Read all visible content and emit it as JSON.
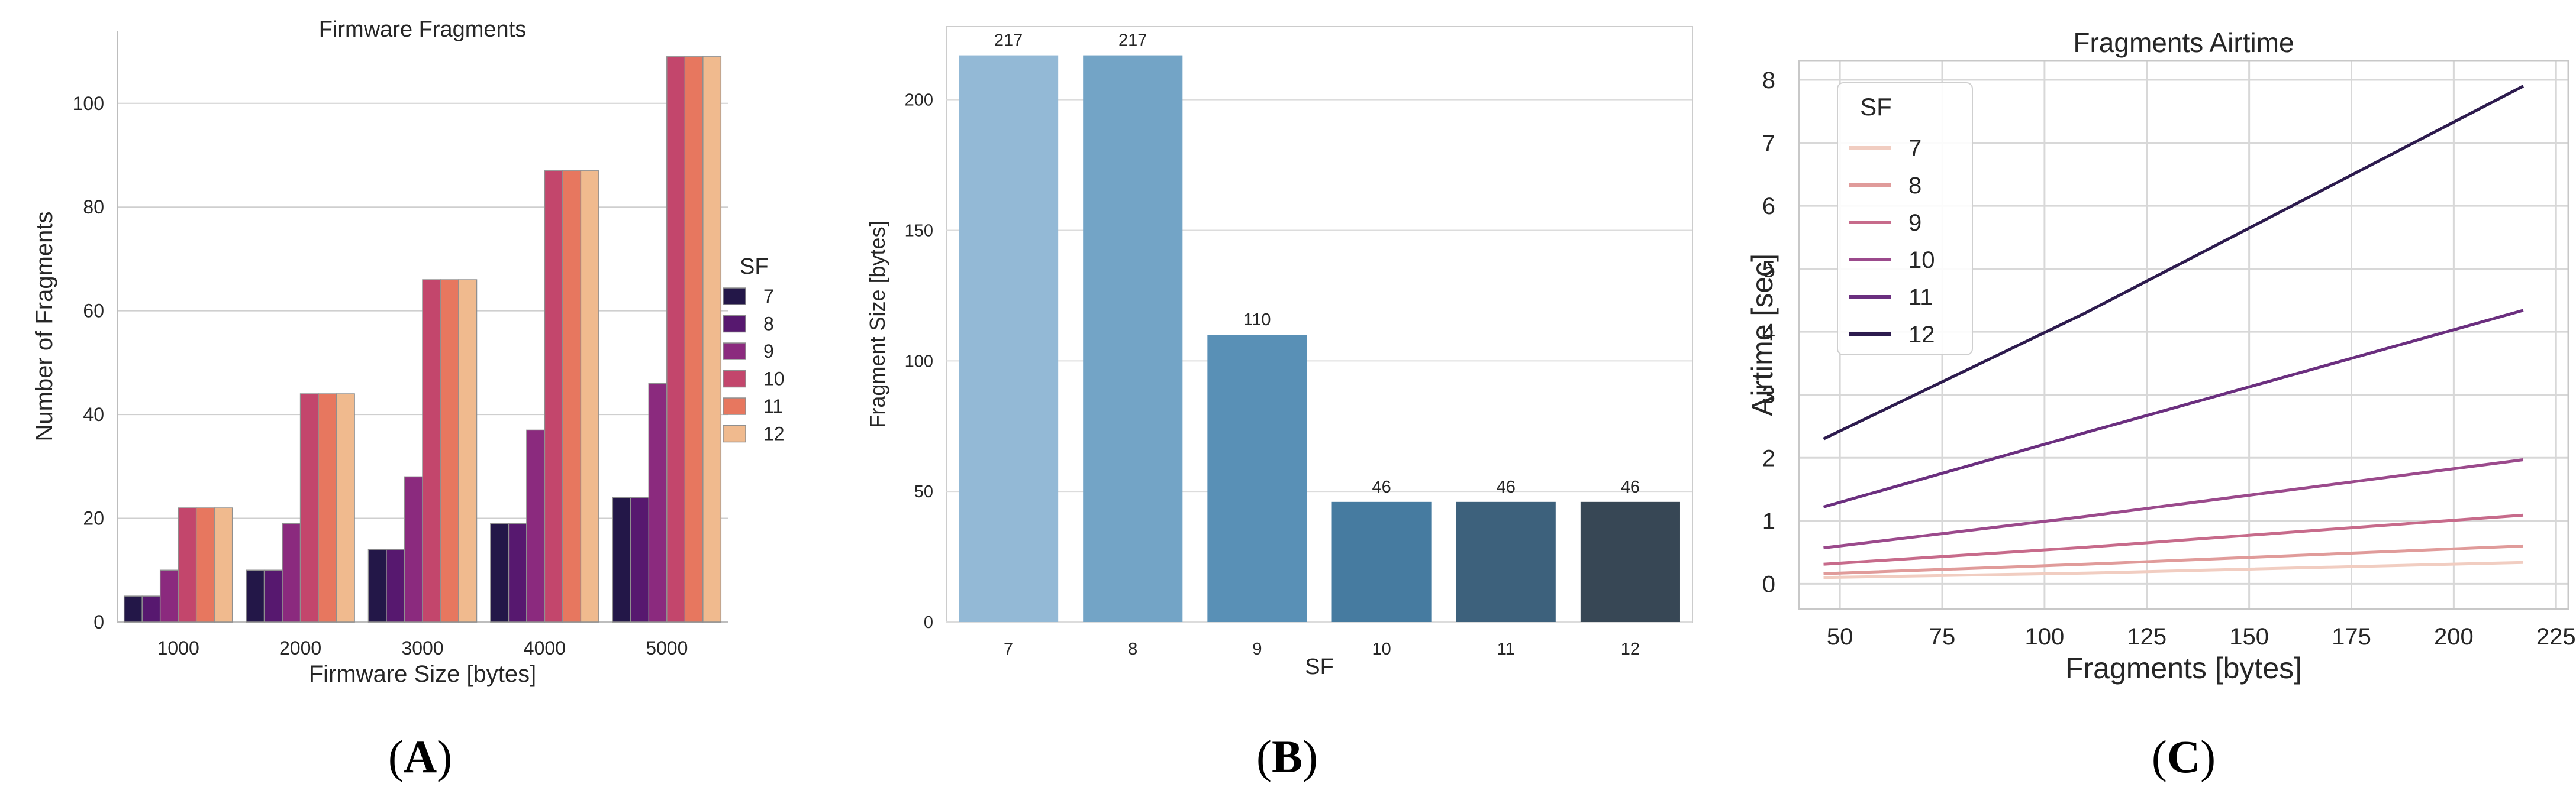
{
  "chart_data": [
    {
      "type": "bar",
      "title": "Firmware Fragments",
      "xlabel": "Firmware Size [bytes]",
      "ylabel": "Number of Fragments",
      "categories": [
        "1000",
        "2000",
        "3000",
        "4000",
        "5000"
      ],
      "yticks": [
        "0",
        "20",
        "40",
        "60",
        "80",
        "100"
      ],
      "ylim": [
        0,
        114
      ],
      "grid": "horizontal",
      "legend_title": "SF",
      "legend_position": "outside-right",
      "series": [
        {
          "name": "7",
          "color": "#231748",
          "values": [
            5,
            10,
            14,
            19,
            24
          ]
        },
        {
          "name": "8",
          "color": "#57186f",
          "values": [
            5,
            10,
            14,
            19,
            24
          ]
        },
        {
          "name": "9",
          "color": "#8b2a7e",
          "values": [
            10,
            19,
            28,
            37,
            46
          ]
        },
        {
          "name": "10",
          "color": "#c3466c",
          "values": [
            22,
            44,
            66,
            87,
            109
          ]
        },
        {
          "name": "11",
          "color": "#e7775f",
          "values": [
            22,
            44,
            66,
            87,
            109
          ]
        },
        {
          "name": "12",
          "color": "#f0ba8e",
          "values": [
            22,
            44,
            66,
            87,
            109
          ]
        }
      ],
      "caption": "A"
    },
    {
      "type": "bar",
      "title": "",
      "xlabel": "SF",
      "ylabel": "Fragment Size [bytes]",
      "categories": [
        "7",
        "8",
        "9",
        "10",
        "11",
        "12"
      ],
      "values": [
        217,
        217,
        110,
        46,
        46,
        46
      ],
      "value_labels": [
        "217",
        "217",
        "110",
        "46",
        "46",
        "46"
      ],
      "colors": [
        "#93b9d6",
        "#73a4c6",
        "#5990b6",
        "#467ba0",
        "#3d617c",
        "#374755"
      ],
      "yticks": [
        "0",
        "50",
        "100",
        "150",
        "200"
      ],
      "ylim": [
        0,
        228
      ],
      "grid": "horizontal",
      "caption": "B"
    },
    {
      "type": "line",
      "title": "Fragments Airtime",
      "xlabel": "Fragments [bytes]",
      "ylabel": "Airtime [sec]",
      "xlim": [
        40,
        228
      ],
      "ylim": [
        -0.4,
        8.3
      ],
      "xticks": [
        "50",
        "75",
        "100",
        "125",
        "150",
        "175",
        "200",
        "225"
      ],
      "yticks": [
        "0",
        "1",
        "2",
        "3",
        "4",
        "5",
        "6",
        "7",
        "8"
      ],
      "grid": "both",
      "legend_title": "SF",
      "legend_position": "top-left",
      "x": [
        46,
        110,
        217
      ],
      "series": [
        {
          "name": "7",
          "color": "#f1cdc1",
          "values": [
            0.1,
            0.17,
            0.34
          ]
        },
        {
          "name": "8",
          "color": "#e09b9a",
          "values": [
            0.16,
            0.31,
            0.6
          ]
        },
        {
          "name": "9",
          "color": "#c76b8b",
          "values": [
            0.31,
            0.58,
            1.09
          ]
        },
        {
          "name": "10",
          "color": "#9b4a8c",
          "values": [
            0.57,
            1.07,
            1.97
          ]
        },
        {
          "name": "11",
          "color": "#6b2f7f",
          "values": [
            1.22,
            2.4,
            4.34
          ]
        },
        {
          "name": "12",
          "color": "#2d1b4e",
          "values": [
            2.3,
            4.3,
            7.9
          ]
        }
      ],
      "caption": "C"
    }
  ]
}
